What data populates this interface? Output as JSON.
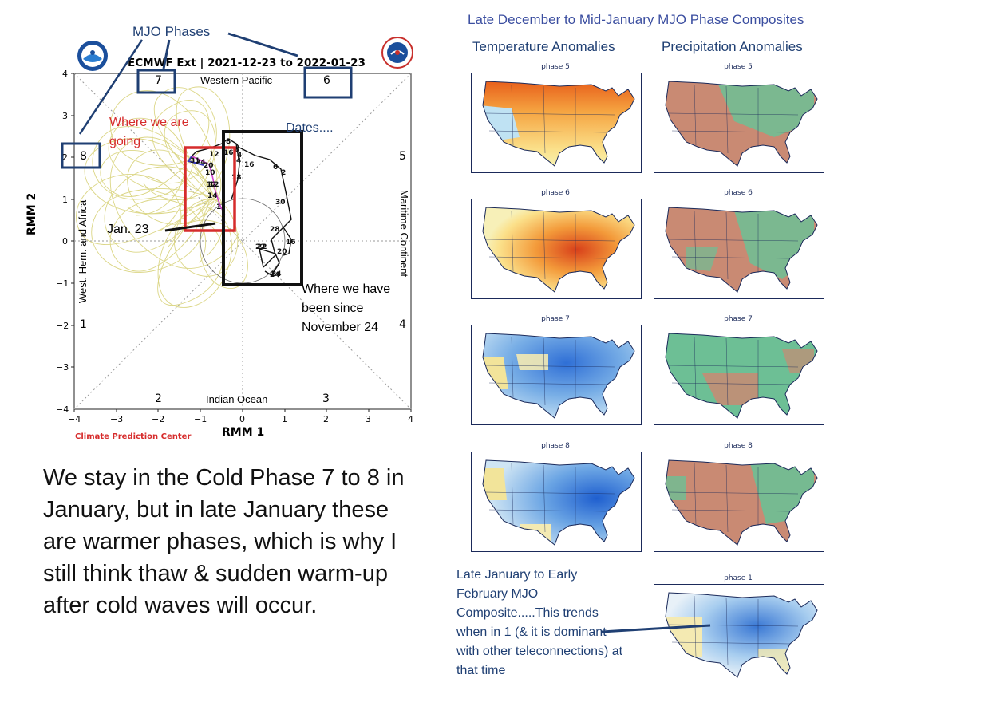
{
  "mjo_plot": {
    "title": "ECMWF Ext | 2021-12-23 to 2022-01-23",
    "xlabel": "RMM 1",
    "ylabel": "RMM 2",
    "x_ticks": [
      "−4",
      "−3",
      "−2",
      "−1",
      "0",
      "1",
      "2",
      "3",
      "4"
    ],
    "y_ticks": [
      "4",
      "3",
      "2",
      "1",
      "0",
      "−1",
      "−2",
      "−3",
      "−4"
    ],
    "region_top": "Western Pacific",
    "region_bottom": "Indian Ocean",
    "region_left": "West. Hem. and Africa",
    "region_right": "Maritime Continent",
    "phase_nums": {
      "p1": "1",
      "p2": "2",
      "p3": "3",
      "p4": "4",
      "p5": "5",
      "p6": "6",
      "p7": "7",
      "p8": "8"
    },
    "credit": "Climate Prediction Center",
    "date_labels": [
      "31",
      "8",
      "16",
      "4",
      "12",
      "24",
      "18",
      "20",
      "10",
      "22",
      "6",
      "24",
      "8",
      "16",
      "4",
      "12",
      "30",
      "28",
      "16",
      "22",
      "24",
      "20",
      "2",
      "14",
      "12",
      "1"
    ],
    "colors": {
      "ensemble": "#d8d27a",
      "observed": "#111111",
      "forecast_blue": "#3838b8",
      "forecast_magenta": "#d040d0",
      "red_box": "#d62c2c",
      "navy": "#1f3f73"
    }
  },
  "annotations": {
    "mjo_phases": "MJO Phases",
    "where_going": "Where we are going",
    "dates": "Dates....",
    "jan23": "Jan. 23",
    "where_been": "Where we have been since November 24"
  },
  "main_text": "We stay in the Cold Phase 7 to 8 in January, but in late January these are warmer phases, which is why I still think thaw & sudden warm-up after cold waves will occur.",
  "composites": {
    "title": "Late December to Mid-January MJO Phase Composites",
    "temp_header": "Temperature Anomalies",
    "precip_header": "Precipitation Anomalies",
    "rows": [
      {
        "temp_label": "phase 5",
        "precip_label": "phase 5"
      },
      {
        "temp_label": "phase 6",
        "precip_label": "phase 6"
      },
      {
        "temp_label": "phase 7",
        "precip_label": "phase 7"
      },
      {
        "temp_label": "phase 8",
        "precip_label": "phase 8"
      }
    ],
    "late_label": "phase 1",
    "late_caption": "Late January to Early February MJO Composite.....This trends when in 1 (& it is dominant with other teleconnections) at that time"
  }
}
